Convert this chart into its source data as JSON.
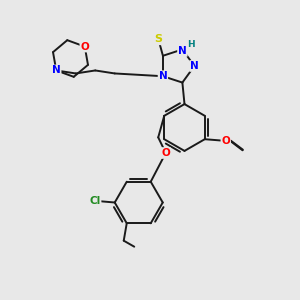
{
  "background_color": "#e8e8e8",
  "bond_color": "#1a1a1a",
  "atom_colors": {
    "N": "#0000ff",
    "O": "#ff0000",
    "S": "#cccc00",
    "H": "#008080",
    "Cl": "#228b22",
    "C": "#1a1a1a"
  },
  "figsize": [
    3.0,
    3.0
  ],
  "dpi": 100
}
